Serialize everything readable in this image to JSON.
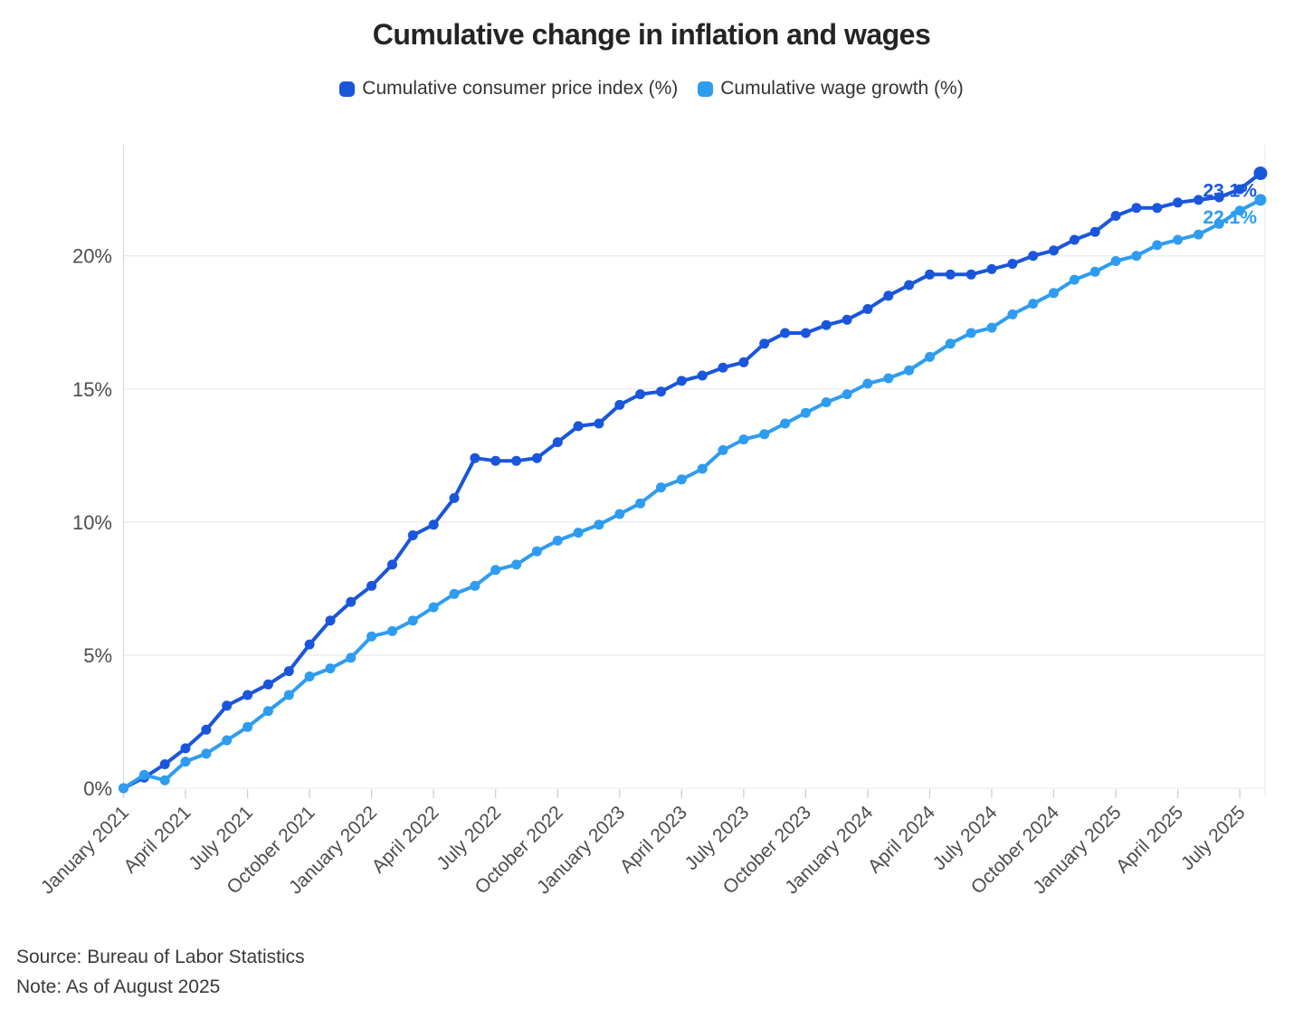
{
  "title": "Cumulative change in inflation and wages",
  "legend": [
    {
      "label": "Cumulative consumer price index (%)",
      "color": "#1A56DB"
    },
    {
      "label": "Cumulative wage growth (%)",
      "color": "#2E9CF0"
    }
  ],
  "footer": {
    "source": "Source: Bureau of Labor Statistics",
    "note": "Note: As of August 2025"
  },
  "colors": {
    "grid": "#ececec",
    "axis": "#dcdcdc",
    "axis_right": "#efefef",
    "tick": "#cfcfcf",
    "axis_label": "#4d4d4d",
    "background": "#ffffff"
  },
  "chart_data": {
    "type": "line",
    "title": "Cumulative change in inflation and wages",
    "x_unit": "month",
    "x_range": [
      "January 2021",
      "August 2025"
    ],
    "x_tick_every": 3,
    "x_tick_labels": [
      "January 2021",
      "April 2021",
      "July 2021",
      "October 2021",
      "January 2022",
      "April 2022",
      "July 2022",
      "October 2022",
      "January 2023",
      "April 2023",
      "July 2023",
      "October 2023",
      "January 2024",
      "April 2024",
      "July 2024",
      "October 2024",
      "January 2025",
      "April 2025",
      "July 2025"
    ],
    "y_ticks": {
      "values": [
        0,
        5,
        10,
        15,
        20
      ],
      "labels": [
        "0%",
        "5%",
        "10%",
        "15%",
        "20%"
      ]
    },
    "ylim": [
      0,
      24
    ],
    "grid": "horizontal",
    "legend_position": "top",
    "series": [
      {
        "name": "Cumulative consumer price index (%)",
        "color": "#1A56DB",
        "end_label": "23.1%",
        "values": [
          0,
          0.4,
          0.9,
          1.5,
          2.2,
          3.1,
          3.5,
          3.9,
          4.4,
          5.4,
          6.3,
          7.0,
          7.6,
          8.4,
          9.5,
          9.9,
          10.9,
          12.4,
          12.3,
          12.3,
          12.4,
          13.0,
          13.6,
          13.7,
          14.4,
          14.8,
          14.9,
          15.3,
          15.5,
          15.8,
          16.0,
          16.7,
          17.1,
          17.1,
          17.4,
          17.6,
          18.0,
          18.5,
          18.9,
          19.3,
          19.3,
          19.3,
          19.5,
          19.7,
          20.0,
          20.2,
          20.6,
          20.9,
          21.5,
          21.8,
          21.8,
          22.0,
          22.1,
          22.2,
          22.5,
          23.1
        ]
      },
      {
        "name": "Cumulative wage growth (%)",
        "color": "#2E9CF0",
        "end_label": "22.1%",
        "values": [
          0,
          0.5,
          0.3,
          1.0,
          1.3,
          1.8,
          2.3,
          2.9,
          3.5,
          4.2,
          4.5,
          4.9,
          5.7,
          5.9,
          6.3,
          6.8,
          7.3,
          7.6,
          8.2,
          8.4,
          8.9,
          9.3,
          9.6,
          9.9,
          10.3,
          10.7,
          11.3,
          11.6,
          12.0,
          12.7,
          13.1,
          13.3,
          13.7,
          14.1,
          14.5,
          14.8,
          15.2,
          15.4,
          15.7,
          16.2,
          16.7,
          17.1,
          17.3,
          17.8,
          18.2,
          18.6,
          19.1,
          19.4,
          19.8,
          20.0,
          20.4,
          20.6,
          20.8,
          21.2,
          21.7,
          22.1
        ]
      }
    ]
  }
}
